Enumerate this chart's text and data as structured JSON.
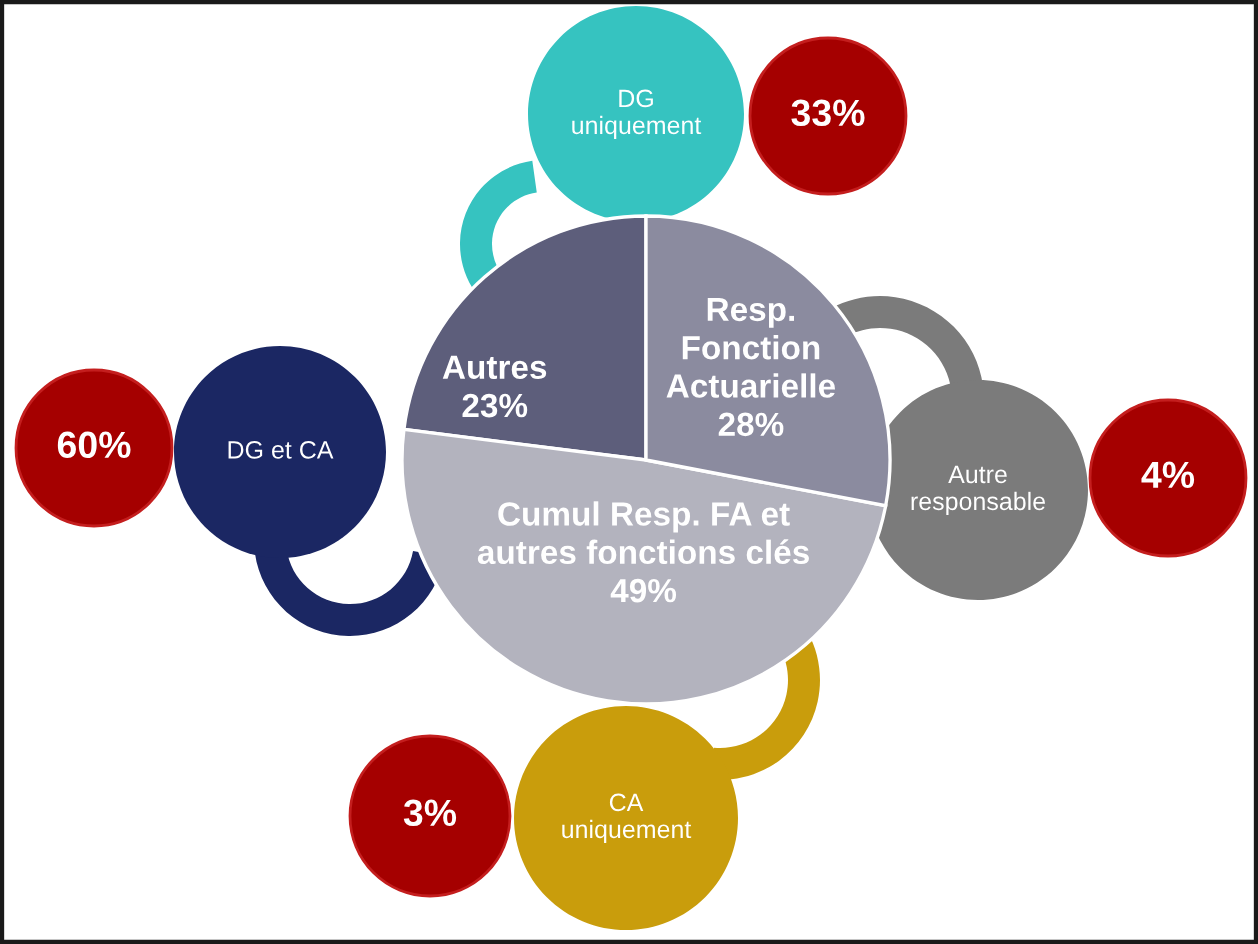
{
  "chart_data": [
    {
      "type": "pie",
      "categories": [
        "Autres",
        "Cumul Resp. FA et\nautres fonctions clés",
        "Resp.\nFonction\nActuarielle"
      ],
      "values": [
        23,
        49,
        28
      ],
      "value_labels": [
        "23%",
        "49%",
        "28%"
      ],
      "colors": [
        "#5d5e7b",
        "#b3b3be",
        "#8b8b9f"
      ]
    },
    {
      "type": "other",
      "categories": [
        "DG\nuniquement",
        "Autre\nresponsable",
        "CA\nuniquement",
        "DG et CA"
      ],
      "colors": [
        "#36c3c0",
        "#7b7b7b",
        "#c99d0c",
        "#1b2763"
      ],
      "series": [
        {
          "color": "#a50000",
          "values": [
            33,
            4,
            3,
            60
          ],
          "value_labels": [
            "33%",
            "4%",
            "3%",
            "60%"
          ]
        }
      ]
    }
  ]
}
